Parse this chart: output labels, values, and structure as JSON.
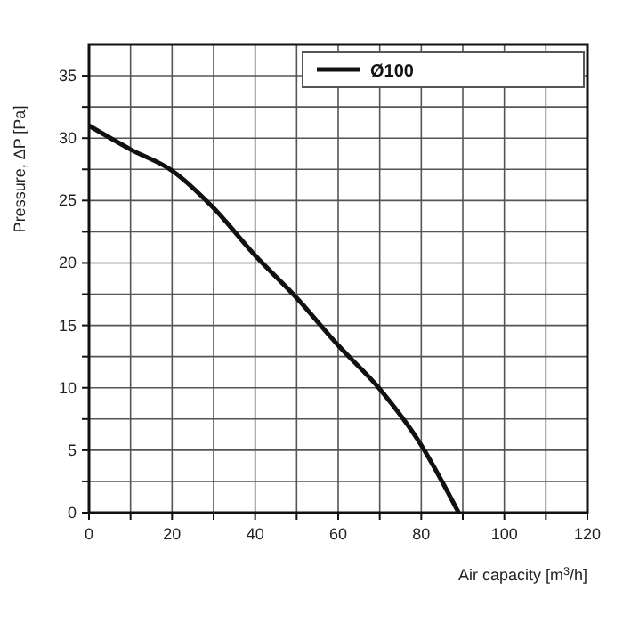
{
  "chart_data": {
    "type": "line",
    "xlabel": "Air capacity [m$^{3}$/h]",
    "ylabel": "Pressure, ΔP [Pa]",
    "xlim": [
      0,
      120
    ],
    "ylim": [
      0,
      37.5
    ],
    "xticks": [
      0,
      {
        "value": 10,
        "label": null
      },
      20,
      {
        "value": 30,
        "label": null
      },
      40,
      {
        "value": 50,
        "label": null
      },
      60,
      {
        "value": 70,
        "label": null
      },
      80,
      {
        "value": 90,
        "label": null
      },
      100,
      {
        "value": 110,
        "label": null
      },
      120
    ],
    "yticks": [
      0,
      {
        "value": 2.5,
        "label": null
      },
      5,
      {
        "value": 7.5,
        "label": null
      },
      10,
      {
        "value": 12.5,
        "label": null
      },
      15,
      {
        "value": 17.5,
        "label": null
      },
      20,
      {
        "value": 22.5,
        "label": null
      },
      25,
      {
        "value": 27.5,
        "label": null
      },
      30,
      {
        "value": 32.5,
        "label": null
      },
      35
    ],
    "grid": true,
    "legend": "top right",
    "marker": "none",
    "line_style": "solid",
    "series": [
      {
        "name": "Ø100",
        "color": "#111111",
        "x": [
          0,
          10,
          20,
          30,
          40,
          50,
          60,
          70,
          80,
          85,
          89
        ],
        "values": [
          31,
          29.1,
          27.4,
          24.4,
          20.6,
          17.2,
          13.4,
          9.9,
          5.4,
          2.5,
          0
        ]
      }
    ]
  }
}
